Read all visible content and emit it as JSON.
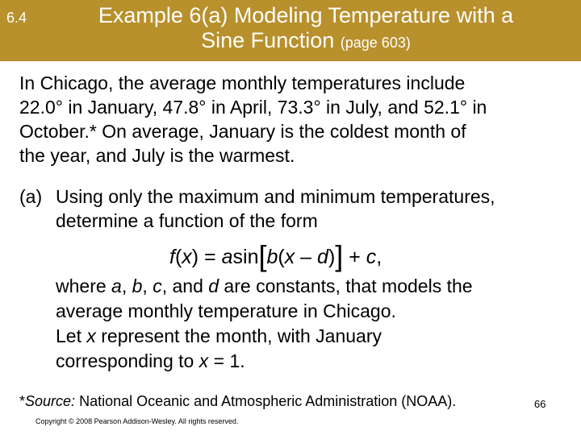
{
  "header": {
    "section": "6.4",
    "title_line1": "Example 6(a) Modeling Temperature with a",
    "title_line2": "Sine Function",
    "page_ref": "(page 603)",
    "bg_color": "#b8902c"
  },
  "intro": {
    "l1": "In Chicago, the average monthly temperatures include",
    "l2": "22.0° in January, 47.8° in April, 73.3° in July, and 52.1° in",
    "l3": "October.* On average, January is the coldest month of",
    "l4": "the year, and July is the warmest."
  },
  "part_a": {
    "label": "(a)",
    "l1": "Using only the maximum and minimum temperatures,",
    "l2": "determine a function of the form",
    "formula": {
      "f": "f",
      "x": "x",
      "eq": " = ",
      "a": "a",
      "sin": "sin",
      "b": "b",
      "x2": "x",
      "minus": " – ",
      "d": "d",
      "plus": " + ",
      "c": "c",
      "end": ","
    },
    "l3_pre": "where ",
    "a": "a",
    "sep1": ", ",
    "b": "b",
    "sep2": ", ",
    "c": "c",
    "sep3": ", and ",
    "d": "d",
    "l3_post": " are constants, that models the",
    "l4": "average monthly temperature in Chicago.",
    "l5_pre": "Let ",
    "l5_x": "x",
    "l5_post": " represent the month, with January",
    "l6_pre": "corresponding to ",
    "l6_x": "x",
    "l6_post": " = 1."
  },
  "source": {
    "star": "*",
    "label": "Source:",
    "text": " National Oceanic and Atmospheric Administration (NOAA)."
  },
  "footer": {
    "page_number": "66",
    "copyright": "Copyright © 2008 Pearson Addison-Wesley.  All rights reserved."
  }
}
